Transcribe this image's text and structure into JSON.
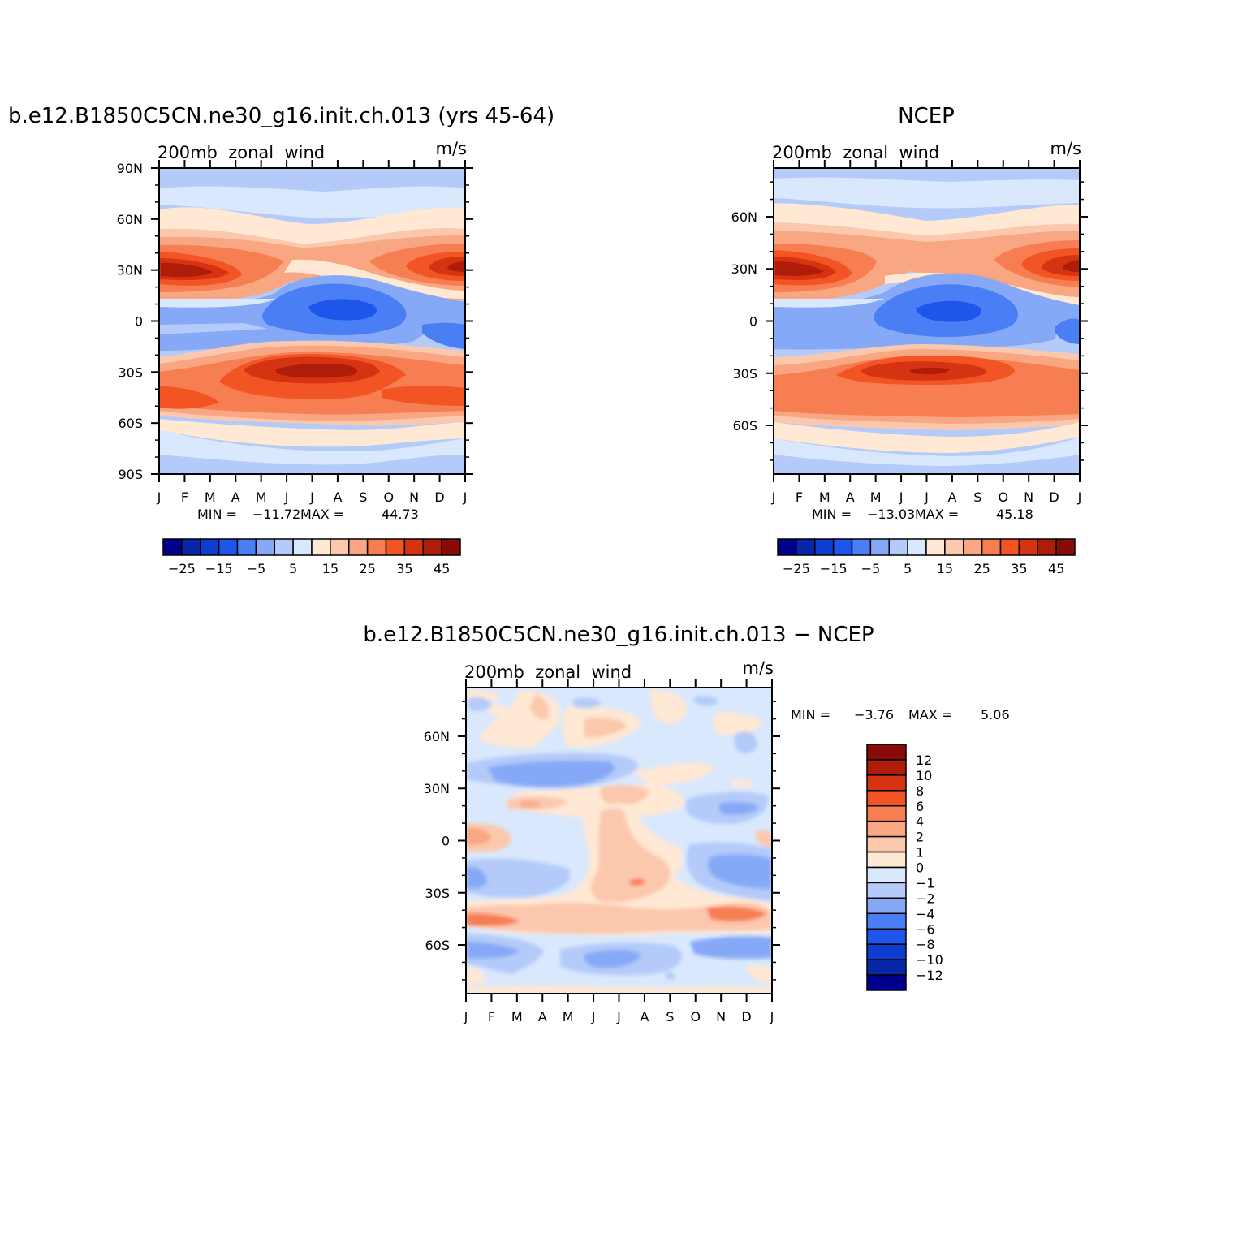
{
  "chart_data": [
    {
      "type": "heatmap",
      "title": "b.e12.B1850C5CN.ne30_g16.init.ch.013 (yrs 45-64)",
      "left_string": "200mb  zonal  wind",
      "right_string": "m/s",
      "x_tick_labels": [
        "J",
        "F",
        "M",
        "A",
        "M",
        "J",
        "J",
        "A",
        "S",
        "O",
        "N",
        "D",
        "J"
      ],
      "y_tick_labels": [
        "90N",
        "60N",
        "30N",
        "0",
        "30S",
        "60S",
        "90S"
      ],
      "y_tick_values": [
        90,
        60,
        30,
        0,
        -30,
        -60,
        -90
      ],
      "ylim": [
        -90,
        90
      ],
      "stats": {
        "min_label": "MIN =",
        "min": "−11.72",
        "max_label": "MAX =",
        "max": "44.73"
      },
      "colorbar": {
        "orientation": "horizontal",
        "labels": [
          "−25",
          "−15",
          "−5",
          "5",
          "15",
          "25",
          "35",
          "45"
        ],
        "colors": [
          "#00008c",
          "#0a26a8",
          "#0d3ed0",
          "#1e55ea",
          "#4a7ef5",
          "#86a9f7",
          "#b4cbfa",
          "#d9e8fd",
          "#ffe8d4",
          "#fcc8ad",
          "#f9a682",
          "#f77e52",
          "#f25424",
          "#d53312",
          "#b01c0a",
          "#8a0a07"
        ]
      },
      "series": [
        {
          "band": "nh_polar_easterly",
          "level": 0,
          "centers": [
            [
              0,
              85
            ],
            [
              12,
              85
            ]
          ]
        },
        {
          "band": "nh_jet",
          "peak_lat": 30,
          "peak_value": 44.73,
          "peak_month": 1
        },
        {
          "band": "tropical_easterly",
          "peak_lat": 5,
          "peak_value": -11.72,
          "peak_month": 7.5
        },
        {
          "band": "sh_jet",
          "peak_lat": -28,
          "peak_value": 40,
          "peak_month": 6.5
        }
      ]
    },
    {
      "type": "heatmap",
      "title": "NCEP",
      "left_string": "200mb  zonal  wind",
      "right_string": "m/s",
      "x_tick_labels": [
        "J",
        "F",
        "M",
        "A",
        "M",
        "J",
        "J",
        "A",
        "S",
        "O",
        "N",
        "D",
        "J"
      ],
      "y_tick_labels": [
        "60N",
        "30N",
        "0",
        "30S",
        "60S"
      ],
      "y_tick_values": [
        60,
        30,
        0,
        -30,
        -60
      ],
      "ylim": [
        -88,
        88
      ],
      "stats": {
        "min_label": "MIN =",
        "min": "−13.03",
        "max_label": "MAX =",
        "max": "45.18"
      },
      "colorbar": {
        "orientation": "horizontal",
        "labels": [
          "−25",
          "−15",
          "−5",
          "5",
          "15",
          "25",
          "35",
          "45"
        ],
        "colors": [
          "#00008c",
          "#0a26a8",
          "#0d3ed0",
          "#1e55ea",
          "#4a7ef5",
          "#86a9f7",
          "#b4cbfa",
          "#d9e8fd",
          "#ffe8d4",
          "#fcc8ad",
          "#f9a682",
          "#f77e52",
          "#f25424",
          "#d53312",
          "#b01c0a",
          "#8a0a07"
        ]
      },
      "series": [
        {
          "band": "nh_jet",
          "peak_lat": 30,
          "peak_value": 45.18,
          "peak_month": 1
        },
        {
          "band": "tropical_easterly",
          "peak_lat": 5,
          "peak_value": -13.03,
          "peak_month": 7.5
        },
        {
          "band": "sh_jet",
          "peak_lat": -28,
          "peak_value": 40,
          "peak_month": 6.5
        }
      ]
    },
    {
      "type": "heatmap",
      "title": "b.e12.B1850C5CN.ne30_g16.init.ch.013 − NCEP",
      "left_string": "200mb  zonal  wind",
      "right_string": "m/s",
      "x_tick_labels": [
        "J",
        "F",
        "M",
        "A",
        "M",
        "J",
        "J",
        "A",
        "S",
        "O",
        "N",
        "D",
        "J"
      ],
      "y_tick_labels": [
        "60N",
        "30N",
        "0",
        "30S",
        "60S"
      ],
      "y_tick_values": [
        60,
        30,
        0,
        -30,
        -60
      ],
      "ylim": [
        -88,
        88
      ],
      "stats": {
        "min_label": "MIN =",
        "min": "−3.76",
        "max_label": "MAX =",
        "max": "5.06"
      },
      "colorbar": {
        "orientation": "vertical",
        "labels": [
          "12",
          "10",
          "8",
          "6",
          "4",
          "2",
          "1",
          "0",
          "−1",
          "−2",
          "−4",
          "−6",
          "−8",
          "−10",
          "−12"
        ],
        "colors": [
          "#8a0a07",
          "#b01c0a",
          "#d53312",
          "#f25424",
          "#f77e52",
          "#f9a682",
          "#fcc8ad",
          "#ffe8d4",
          "#d9e8fd",
          "#b4cbfa",
          "#86a9f7",
          "#4a7ef5",
          "#1e55ea",
          "#0d3ed0",
          "#0a26a8",
          "#00008c"
        ]
      }
    }
  ]
}
